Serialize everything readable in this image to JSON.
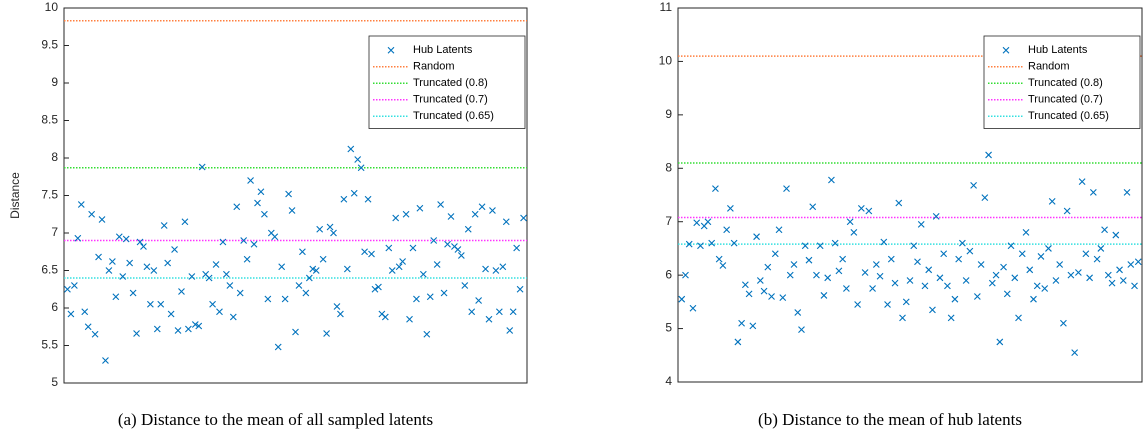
{
  "chart_data": [
    {
      "type": "scatter",
      "ylabel": "Distance",
      "caption": "(a) Distance to the mean of all sampled latents",
      "ylim": [
        5,
        10
      ],
      "yticks": [
        5,
        5.5,
        6,
        6.5,
        7,
        7.5,
        8,
        8.5,
        9,
        9.5,
        10
      ],
      "legend": "upper right",
      "series": [
        {
          "name": "Hub Latents",
          "color": "#0072bd",
          "values": [
            6.25,
            5.92,
            6.3,
            6.93,
            7.38,
            5.95,
            5.75,
            7.25,
            5.65,
            6.68,
            7.18,
            5.3,
            6.5,
            6.62,
            6.15,
            6.95,
            6.42,
            6.92,
            6.6,
            6.2,
            5.66,
            6.88,
            6.82,
            6.55,
            6.05,
            6.5,
            5.72,
            6.05,
            7.1,
            6.6,
            5.92,
            6.78,
            5.7,
            6.22,
            7.15,
            5.72,
            6.42,
            5.78,
            5.76,
            7.88,
            6.45,
            6.4,
            6.05,
            6.58,
            5.95,
            6.88,
            6.45,
            6.3,
            5.88,
            7.35,
            6.2,
            6.9,
            6.65,
            7.7,
            6.85,
            7.4,
            7.55,
            7.25,
            6.12,
            7.0,
            6.95,
            5.48,
            6.55,
            6.12,
            7.52,
            7.3,
            5.68,
            6.3,
            6.75,
            6.2,
            6.4,
            6.52,
            6.5,
            7.05,
            6.65,
            5.66,
            7.08,
            7.0,
            6.02,
            5.92,
            7.45,
            6.52,
            8.12,
            7.53,
            7.98,
            7.87,
            6.75,
            7.45,
            6.72,
            6.25,
            6.28,
            5.92,
            5.88,
            6.8,
            6.5,
            7.2,
            6.55,
            6.62,
            7.25,
            5.85,
            6.8,
            6.12,
            7.33,
            6.45,
            5.65,
            6.15,
            6.9,
            6.58,
            7.38,
            6.2,
            6.85,
            7.22,
            6.82,
            6.78,
            6.7,
            6.3,
            7.05,
            5.95,
            7.25,
            6.1,
            7.35,
            6.52,
            5.85,
            7.3,
            6.5,
            5.95,
            6.55,
            7.15,
            5.7,
            5.95,
            6.8,
            6.25,
            7.2
          ]
        }
      ],
      "reference_lines": [
        {
          "name": "Random",
          "color": "#ff7f3f",
          "value": 9.83
        },
        {
          "name": "Truncated (0.8)",
          "color": "#33dd33",
          "value": 7.87
        },
        {
          "name": "Truncated (0.7)",
          "color": "#ff33ff",
          "value": 6.9
        },
        {
          "name": "Truncated (0.65)",
          "color": "#33e0e0",
          "value": 6.4
        }
      ]
    },
    {
      "type": "scatter",
      "caption": "(b) Distance to the mean of hub latents",
      "ylim": [
        4,
        11
      ],
      "yticks": [
        4,
        5,
        6,
        7,
        8,
        9,
        10,
        11
      ],
      "legend": "upper right",
      "series": [
        {
          "name": "Hub Latents",
          "color": "#0072bd",
          "values": [
            5.55,
            6.0,
            6.58,
            5.38,
            6.98,
            6.55,
            6.92,
            7.0,
            6.6,
            7.62,
            6.3,
            6.18,
            6.85,
            7.25,
            6.6,
            4.75,
            5.1,
            5.82,
            5.65,
            5.05,
            6.72,
            5.9,
            5.7,
            6.15,
            5.6,
            6.4,
            6.85,
            5.58,
            7.62,
            6.0,
            6.2,
            5.3,
            4.98,
            6.55,
            6.28,
            7.28,
            6.0,
            6.55,
            5.62,
            5.95,
            7.78,
            6.6,
            6.08,
            6.3,
            5.75,
            7.0,
            6.8,
            5.45,
            7.25,
            6.05,
            7.2,
            5.75,
            6.2,
            5.98,
            6.62,
            5.45,
            6.3,
            5.85,
            7.35,
            5.2,
            5.5,
            5.9,
            6.55,
            6.25,
            6.95,
            5.8,
            6.1,
            5.35,
            7.1,
            5.95,
            6.4,
            5.8,
            5.2,
            5.55,
            6.3,
            6.6,
            5.9,
            6.45,
            7.68,
            5.6,
            6.2,
            7.45,
            8.25,
            5.85,
            6.0,
            4.75,
            6.15,
            5.65,
            6.55,
            5.95,
            5.2,
            6.4,
            6.8,
            6.1,
            5.55,
            5.8,
            6.35,
            5.75,
            6.5,
            7.38,
            5.9,
            6.2,
            5.1,
            7.2,
            6.0,
            4.55,
            6.05,
            7.75,
            6.4,
            5.95,
            7.55,
            6.3,
            6.5,
            6.85,
            6.0,
            5.85,
            6.75,
            6.1,
            5.9,
            7.55,
            6.2,
            5.8,
            6.25
          ]
        }
      ],
      "reference_lines": [
        {
          "name": "Random",
          "color": "#ff7f3f",
          "value": 10.1
        },
        {
          "name": "Truncated (0.8)",
          "color": "#33dd33",
          "value": 8.1
        },
        {
          "name": "Truncated (0.7)",
          "color": "#ff33ff",
          "value": 7.08
        },
        {
          "name": "Truncated (0.65)",
          "color": "#33e0e0",
          "value": 6.58
        }
      ]
    }
  ]
}
